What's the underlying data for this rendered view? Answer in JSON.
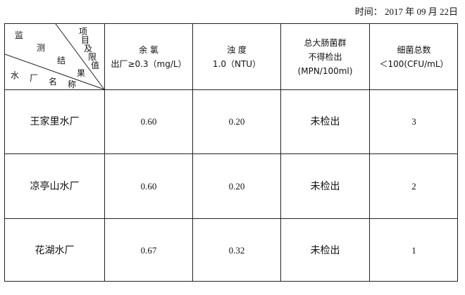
{
  "date": {
    "label": "时间：",
    "year": "2017",
    "y": "年",
    "month": "09",
    "m": "月",
    "day": "22",
    "d": "日"
  },
  "corner": {
    "top_chars": [
      "项",
      "目",
      "及",
      "限",
      "值"
    ],
    "mid_chars": [
      "监",
      "测",
      "结",
      "果"
    ],
    "bottom_chars": [
      "水",
      "厂",
      "名",
      "称"
    ]
  },
  "headers": [
    {
      "line1": "余 氯",
      "line2": "出厂≥0.3（mg/L）"
    },
    {
      "line1": "浊 度",
      "line2": "1.0（NTU）"
    },
    {
      "line1": "总大肠菌群",
      "line2": "不得检出",
      "line3": "(MPN/100ml)"
    },
    {
      "line1": "细菌总数",
      "line2": "＜100(CFU/mL）"
    }
  ],
  "rows": [
    {
      "name": "王家里水厂",
      "chlorine": "0.60",
      "turbidity": "0.20",
      "coliform": "未检出",
      "bacteria": "3"
    },
    {
      "name": "凉亭山水厂",
      "chlorine": "0.60",
      "turbidity": "0.20",
      "coliform": "未检出",
      "bacteria": "2"
    },
    {
      "name": "花湖水厂",
      "chlorine": "0.67",
      "turbidity": "0.32",
      "coliform": "未检出",
      "bacteria": "1"
    }
  ]
}
